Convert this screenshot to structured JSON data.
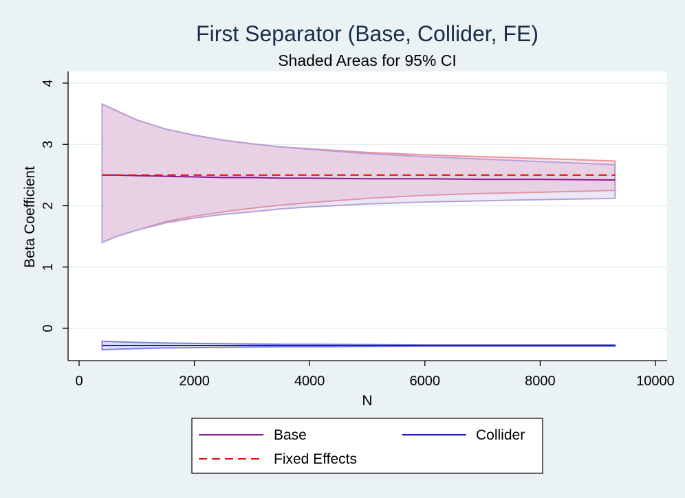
{
  "chart_data": {
    "type": "line",
    "title": "First Separator (Base, Collider, FE)",
    "subtitle": "Shaded Areas for 95% CI",
    "xlabel": "N",
    "ylabel": "Beta Coefficient",
    "xlim": [
      0,
      10000
    ],
    "ylim": [
      -0.5,
      4.2
    ],
    "xticks": [
      "0",
      "2000",
      "4000",
      "6000",
      "8000",
      "10000"
    ],
    "xtick_values": [
      0,
      2000,
      4000,
      6000,
      8000,
      10000
    ],
    "yticks": [
      "0",
      "1",
      "2",
      "3",
      "4"
    ],
    "ytick_values": [
      0,
      1,
      2,
      3,
      4
    ],
    "grid": "horizontal",
    "legend_position": "bottom",
    "x": [
      400,
      650,
      1000,
      1500,
      2000,
      2500,
      3000,
      3500,
      4000,
      5000,
      6000,
      7000,
      8000,
      9300
    ],
    "series": [
      {
        "name": "Base",
        "color": "#8b1a8b",
        "style": "solid",
        "values": [
          2.5,
          2.5,
          2.49,
          2.48,
          2.47,
          2.46,
          2.46,
          2.45,
          2.45,
          2.44,
          2.44,
          2.43,
          2.43,
          2.42
        ],
        "ci_lower": [
          1.4,
          1.5,
          1.6,
          1.72,
          1.8,
          1.86,
          1.9,
          1.95,
          1.98,
          2.03,
          2.06,
          2.08,
          2.1,
          2.12
        ],
        "ci_upper": [
          3.66,
          3.55,
          3.4,
          3.25,
          3.15,
          3.07,
          3.01,
          2.96,
          2.92,
          2.85,
          2.8,
          2.76,
          2.72,
          2.67
        ],
        "ci_color": "#b5a0d8"
      },
      {
        "name": "Collider",
        "color": "#1a1ab5",
        "style": "solid",
        "values": [
          -0.28,
          -0.28,
          -0.28,
          -0.28,
          -0.28,
          -0.28,
          -0.28,
          -0.28,
          -0.28,
          -0.28,
          -0.28,
          -0.28,
          -0.28,
          -0.28
        ],
        "ci_lower": [
          -0.35,
          -0.34,
          -0.33,
          -0.32,
          -0.315,
          -0.31,
          -0.305,
          -0.3,
          -0.3,
          -0.295,
          -0.29,
          -0.29,
          -0.29,
          -0.29
        ],
        "ci_upper": [
          -0.21,
          -0.22,
          -0.23,
          -0.24,
          -0.245,
          -0.25,
          -0.255,
          -0.26,
          -0.26,
          -0.265,
          -0.27,
          -0.27,
          -0.27,
          -0.27
        ],
        "ci_color": "#8080e0"
      },
      {
        "name": "Fixed Effects",
        "color": "#e01010",
        "style": "dashed",
        "values": [
          2.5,
          2.5,
          2.5,
          2.5,
          2.5,
          2.5,
          2.5,
          2.5,
          2.5,
          2.5,
          2.5,
          2.5,
          2.5,
          2.5
        ],
        "ci_lower": [
          1.4,
          1.5,
          1.6,
          1.74,
          1.83,
          1.9,
          1.96,
          2.01,
          2.05,
          2.12,
          2.17,
          2.2,
          2.22,
          2.25
        ],
        "ci_upper": [
          3.66,
          3.55,
          3.4,
          3.25,
          3.15,
          3.07,
          3.01,
          2.96,
          2.93,
          2.87,
          2.83,
          2.8,
          2.77,
          2.73
        ],
        "ci_color": "#f0909a",
        "ci_fill": "#f8d8e0"
      }
    ]
  }
}
